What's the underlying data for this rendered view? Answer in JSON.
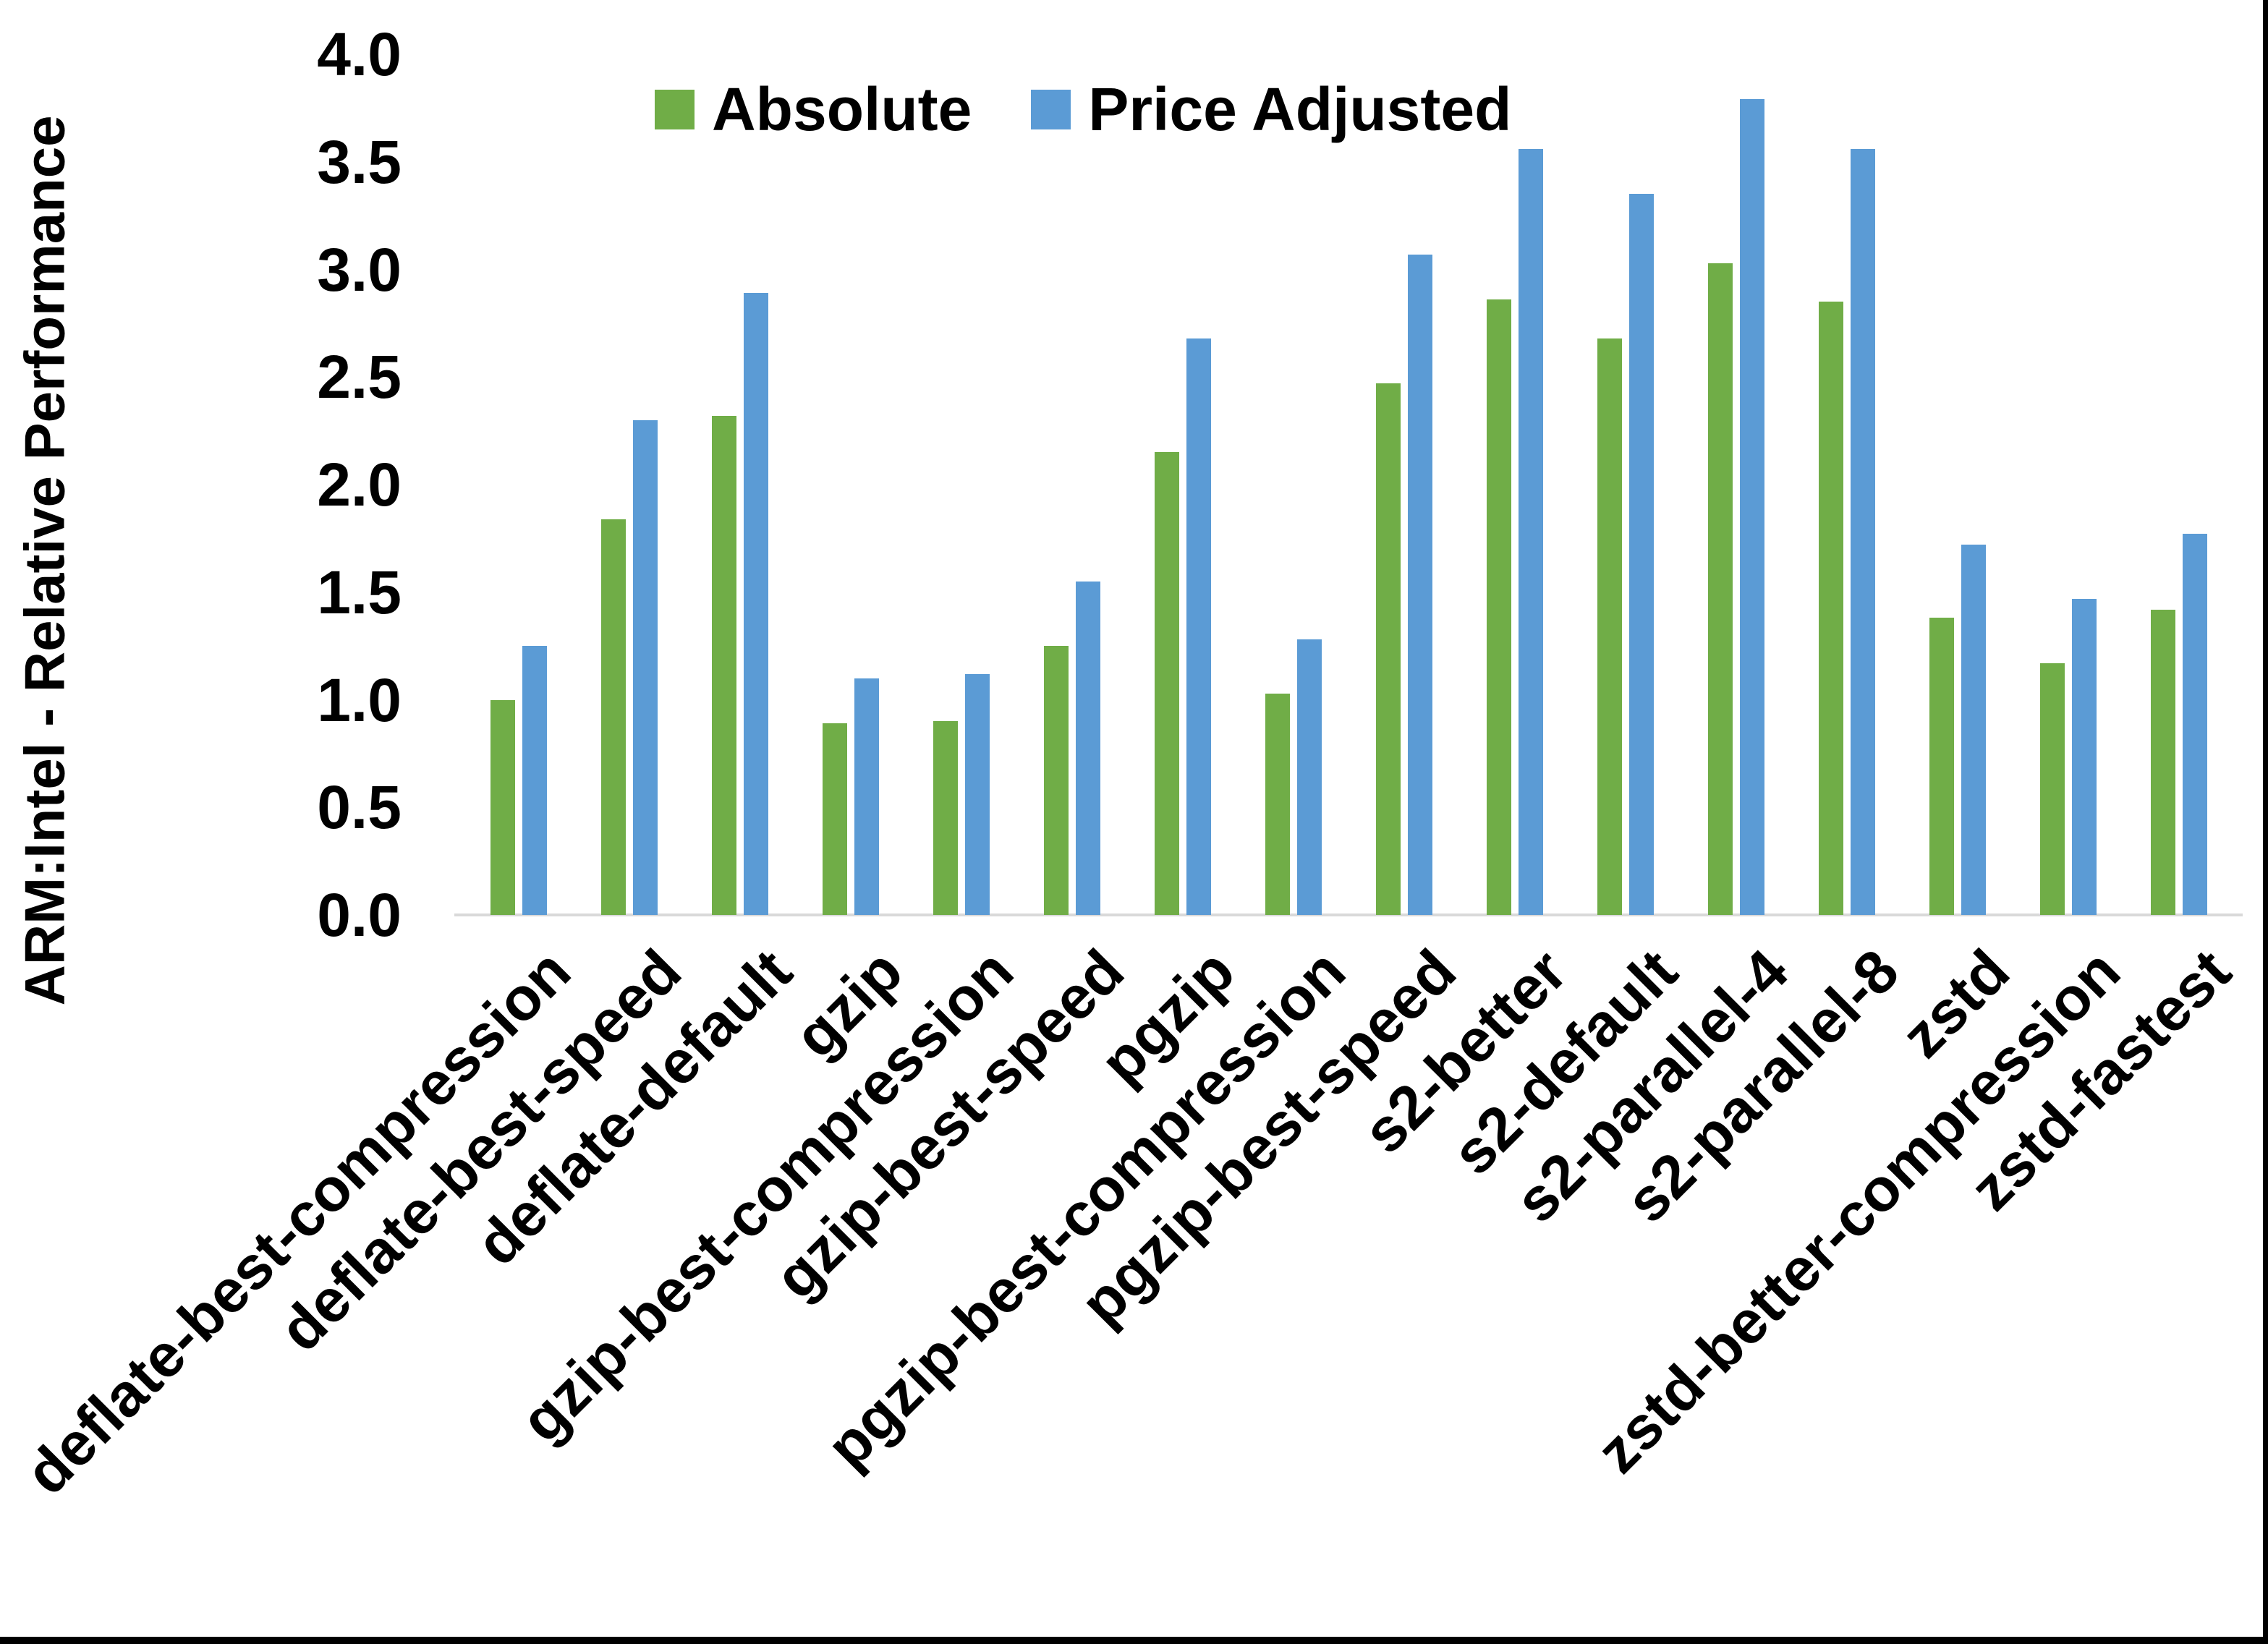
{
  "chart_data": {
    "type": "bar",
    "title": "",
    "xlabel": "",
    "ylabel": "ARM:Intel - Relative Performance",
    "ylim": [
      0.0,
      4.0
    ],
    "ytick_labels": [
      "0.0",
      "0.5",
      "1.0",
      "1.5",
      "2.0",
      "2.5",
      "3.0",
      "3.5",
      "4.0"
    ],
    "grid": false,
    "legend_position": "top-center",
    "categories": [
      "deflate-best-compression",
      "deflate-best-speed",
      "deflate-default",
      "gzip",
      "gzip-best-compression",
      "gzip-best-speed",
      "pgzip",
      "pgzip-best-compression",
      "pgzip-best-speed",
      "s2-better",
      "s2-default",
      "s2-parallel-4",
      "s2-parallel-8",
      "zstd",
      "zstd-better-compression",
      "zstd-fastest"
    ],
    "series": [
      {
        "name": "Absolute",
        "color": "#70AD47",
        "values": [
          1.0,
          1.84,
          2.32,
          0.89,
          0.9,
          1.25,
          2.15,
          1.03,
          2.47,
          2.86,
          2.68,
          3.03,
          2.85,
          1.38,
          1.17,
          1.42
        ]
      },
      {
        "name": "Price Adjusted",
        "color": "#5B9BD5",
        "values": [
          1.25,
          2.3,
          2.89,
          1.1,
          1.12,
          1.55,
          2.68,
          1.28,
          3.07,
          3.56,
          3.35,
          3.79,
          3.56,
          1.72,
          1.47,
          1.77
        ]
      }
    ]
  },
  "colors": {
    "background": "#FFFFFF",
    "axis_line": "#D9D9D9",
    "text": "#000000",
    "border": "#000000"
  }
}
